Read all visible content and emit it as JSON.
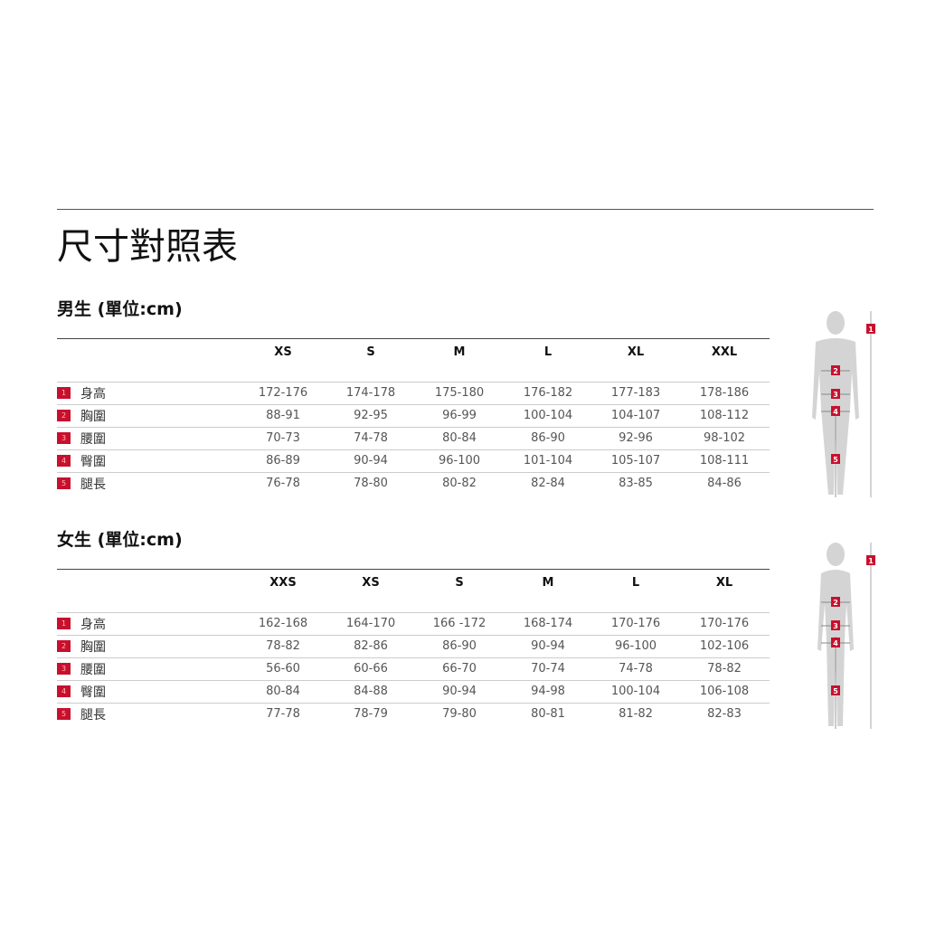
{
  "title": "尺寸對照表",
  "accent": "#c8102e",
  "men": {
    "heading": "男生 (單位:cm)",
    "sizes": [
      "XS",
      "S",
      "M",
      "L",
      "XL",
      "XXL"
    ],
    "rows": [
      {
        "num": "1",
        "label": "身高",
        "values": [
          "172-176",
          "174-178",
          "175-180",
          "176-182",
          "177-183",
          "178-186"
        ]
      },
      {
        "num": "2",
        "label": "胸圍",
        "values": [
          "88-91",
          "92-95",
          "96-99",
          "100-104",
          "104-107",
          "108-112"
        ]
      },
      {
        "num": "3",
        "label": "腰圍",
        "values": [
          "70-73",
          "74-78",
          "80-84",
          "86-90",
          "92-96",
          "98-102"
        ]
      },
      {
        "num": "4",
        "label": "臀圍",
        "values": [
          "86-89",
          "90-94",
          "96-100",
          "101-104",
          "105-107",
          "108-111"
        ]
      },
      {
        "num": "5",
        "label": "腿長",
        "values": [
          "76-78",
          "78-80",
          "80-82",
          "82-84",
          "83-85",
          "84-86"
        ]
      }
    ]
  },
  "women": {
    "heading": "女生 (單位:cm)",
    "sizes": [
      "XXS",
      "XS",
      "S",
      "M",
      "L",
      "XL"
    ],
    "rows": [
      {
        "num": "1",
        "label": "身高",
        "values": [
          "162-168",
          "164-170",
          "166 -172",
          "168-174",
          "170-176",
          "170-176"
        ]
      },
      {
        "num": "2",
        "label": "胸圍",
        "values": [
          "78-82",
          "82-86",
          "86-90",
          "90-94",
          "96-100",
          "102-106"
        ]
      },
      {
        "num": "3",
        "label": "腰圍",
        "values": [
          "56-60",
          "60-66",
          "66-70",
          "70-74",
          "74-78",
          "78-82"
        ]
      },
      {
        "num": "4",
        "label": "臀圍",
        "values": [
          "80-84",
          "84-88",
          "90-94",
          "94-98",
          "100-104",
          "106-108"
        ]
      },
      {
        "num": "5",
        "label": "腿長",
        "values": [
          "77-78",
          "78-79",
          "79-80",
          "80-81",
          "81-82",
          "82-83"
        ]
      }
    ]
  },
  "figure_markers": [
    "1",
    "2",
    "3",
    "4",
    "5"
  ]
}
